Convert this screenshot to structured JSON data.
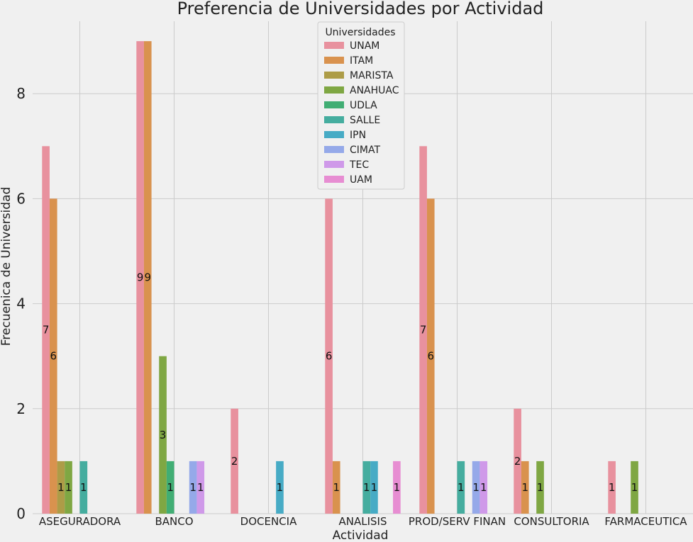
{
  "chart_data": {
    "type": "bar",
    "title": "Preferencia de Universidades por Actividad",
    "xlabel": "Actividad",
    "ylabel": "Frecuenica de Universidad",
    "ylim": [
      0,
      9.4
    ],
    "yticks": [
      0,
      2,
      4,
      6,
      8
    ],
    "grid": true,
    "legend_title": "Universidades",
    "legend_position": "top-center",
    "categories": [
      "ASEGURADORA",
      "BANCO",
      "DOCENCIA",
      "ANALISIS",
      "PROD/SERV FINAN",
      "CONSULTORIA",
      "FARMACEUTICA"
    ],
    "series": [
      {
        "name": "UNAM",
        "color": "#e8919e",
        "values": [
          7,
          9,
          2,
          6,
          7,
          2,
          1
        ]
      },
      {
        "name": "ITAM",
        "color": "#d9924e",
        "values": [
          6,
          9,
          0,
          1,
          6,
          1,
          0
        ]
      },
      {
        "name": "MARISTA",
        "color": "#ad9c47",
        "values": [
          1,
          0,
          0,
          0,
          0,
          0,
          0
        ]
      },
      {
        "name": "ANAHUAC",
        "color": "#7fa743",
        "values": [
          1,
          3,
          0,
          0,
          0,
          1,
          1
        ]
      },
      {
        "name": "UDLA",
        "color": "#41ae74",
        "values": [
          0,
          1,
          0,
          0,
          0,
          0,
          0
        ]
      },
      {
        "name": "SALLE",
        "color": "#45ad9f",
        "values": [
          1,
          0,
          0,
          1,
          1,
          0,
          0
        ]
      },
      {
        "name": "IPN",
        "color": "#47abc5",
        "values": [
          0,
          0,
          1,
          1,
          0,
          0,
          0
        ]
      },
      {
        "name": "CIMAT",
        "color": "#95a9e9",
        "values": [
          0,
          1,
          0,
          0,
          1,
          0,
          0
        ]
      },
      {
        "name": "TEC",
        "color": "#cf99e9",
        "values": [
          0,
          1,
          0,
          0,
          1,
          0,
          0
        ]
      },
      {
        "name": "UAM",
        "color": "#e78dd2",
        "values": [
          0,
          0,
          0,
          1,
          0,
          0,
          0
        ]
      }
    ]
  }
}
